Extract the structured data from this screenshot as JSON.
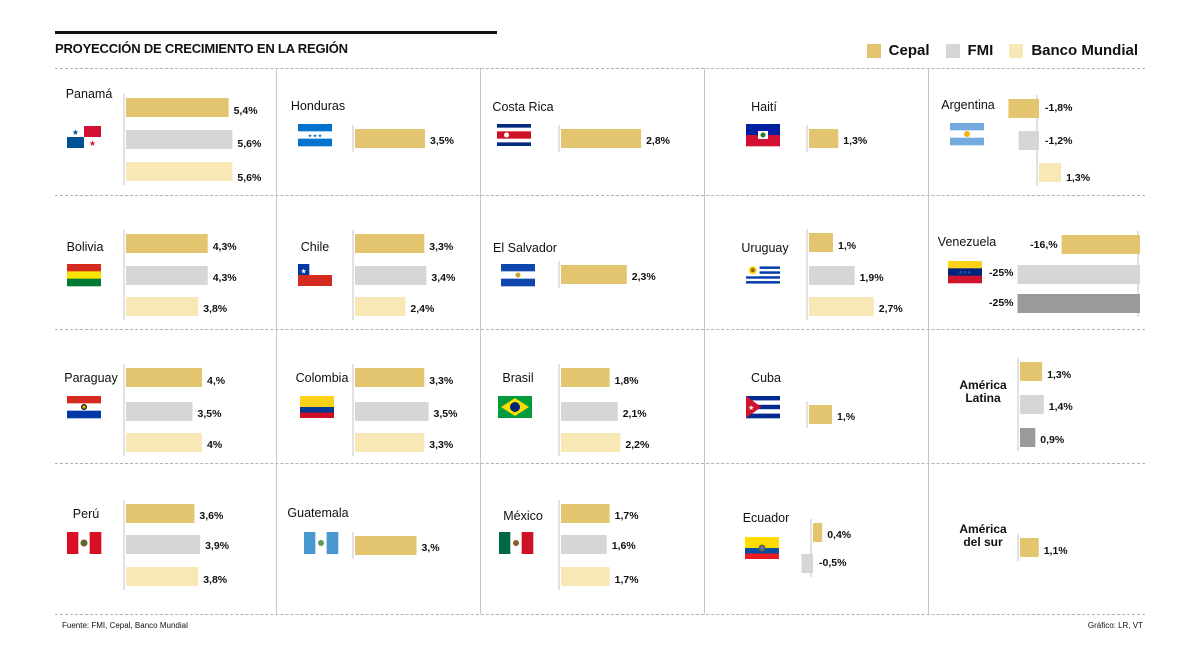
{
  "title": "PROYECCIÓN DE CRECIMIENTO EN LA REGIÓN",
  "legend": [
    {
      "label": "Cepal",
      "color": "#e2c56e"
    },
    {
      "label": "FMI",
      "color": "#d6d6d9"
    },
    {
      "label": "Banco Mundial",
      "color": "#f8e8b5"
    }
  ],
  "source": "Fuente: FMI, Cepal, Banco Mundial",
  "credit": "Gráfico: LR, VT",
  "chart_data": {
    "type": "bar",
    "unit": "%",
    "series": [
      "Cepal",
      "FMI",
      "Banco Mundial"
    ],
    "colors": {
      "Cepal": "#e2c56e",
      "FMI": "#d6d6d9",
      "Banco Mundial": "#f8e8b5"
    },
    "countries": [
      {
        "name": "Panamá",
        "flag": "panama-flag",
        "values": [
          5.4,
          5.6,
          5.6
        ],
        "labels": [
          "5,4%",
          "5,6%",
          "5,6%"
        ]
      },
      {
        "name": "Honduras",
        "flag": "honduras-flag",
        "values": [
          3.5
        ],
        "labels": [
          "3,5%"
        ]
      },
      {
        "name": "Costa Rica",
        "flag": "costa-rica-flag",
        "values": [
          2.8
        ],
        "labels": [
          "2,8%"
        ]
      },
      {
        "name": "Haití",
        "flag": "haiti-flag",
        "values": [
          1.3
        ],
        "labels": [
          "1,3%"
        ]
      },
      {
        "name": "Argentina",
        "flag": "argentina-flag",
        "values": [
          -1.8,
          -1.2,
          1.3
        ],
        "labels": [
          "-1,8%",
          "-1,2%",
          "1,3%"
        ]
      },
      {
        "name": "Bolivia",
        "flag": "bolivia-flag",
        "values": [
          4.3,
          4.3,
          3.8
        ],
        "labels": [
          "4,3%",
          "4,3%",
          "3,8%"
        ]
      },
      {
        "name": "Chile",
        "flag": "chile-flag",
        "values": [
          3.3,
          3.4,
          2.4
        ],
        "labels": [
          "3,3%",
          "3,4%",
          "2,4%"
        ]
      },
      {
        "name": "El Salvador",
        "flag": "el-salvador-flag",
        "values": [
          2.3
        ],
        "labels": [
          "2,3%"
        ]
      },
      {
        "name": "Uruguay",
        "flag": "uruguay-flag",
        "values": [
          1.0,
          1.9,
          2.7
        ],
        "labels": [
          "1,%",
          "1,9%",
          "2,7%"
        ]
      },
      {
        "name": "Venezuela",
        "flag": "venezuela-flag",
        "values": [
          -16,
          -25,
          -25
        ],
        "labels": [
          "-16,%",
          "-25%",
          "-25%"
        ]
      },
      {
        "name": "Paraguay",
        "flag": "paraguay-flag",
        "values": [
          4.0,
          3.5,
          4.0
        ],
        "labels": [
          "4,%",
          "3,5%",
          "4%"
        ]
      },
      {
        "name": "Colombia",
        "flag": "colombia-flag",
        "values": [
          3.3,
          3.5,
          3.3
        ],
        "labels": [
          "3,3%",
          "3,5%",
          "3,3%"
        ]
      },
      {
        "name": "Brasil",
        "flag": "brasil-flag",
        "values": [
          1.8,
          2.1,
          2.2
        ],
        "labels": [
          "1,8%",
          "2,1%",
          "2,2%"
        ]
      },
      {
        "name": "Cuba",
        "flag": "cuba-flag",
        "values": [
          1.0
        ],
        "labels": [
          "1,%"
        ]
      },
      {
        "name": "América Latina",
        "flag": "",
        "values": [
          1.3,
          1.4,
          0.9
        ],
        "labels": [
          "1,3%",
          "1,4%",
          "0,9%"
        ]
      },
      {
        "name": "Perú",
        "flag": "peru-flag",
        "values": [
          3.6,
          3.9,
          3.8
        ],
        "labels": [
          "3,6%",
          "3,9%",
          "3,8%"
        ]
      },
      {
        "name": "Guatemala",
        "flag": "guatemala-flag",
        "values": [
          3.0
        ],
        "labels": [
          "3,%"
        ]
      },
      {
        "name": "México",
        "flag": "mexico-flag",
        "values": [
          1.7,
          1.6,
          1.7
        ],
        "labels": [
          "1,7%",
          "1,6%",
          "1,7%"
        ]
      },
      {
        "name": "Ecuador",
        "flag": "ecuador-flag",
        "values": [
          0.4,
          -0.5
        ],
        "labels": [
          "0,4%",
          "-0,5%"
        ]
      },
      {
        "name": "América del sur",
        "flag": "",
        "values": [
          1.1
        ],
        "labels": [
          "1,1%"
        ]
      }
    ]
  }
}
